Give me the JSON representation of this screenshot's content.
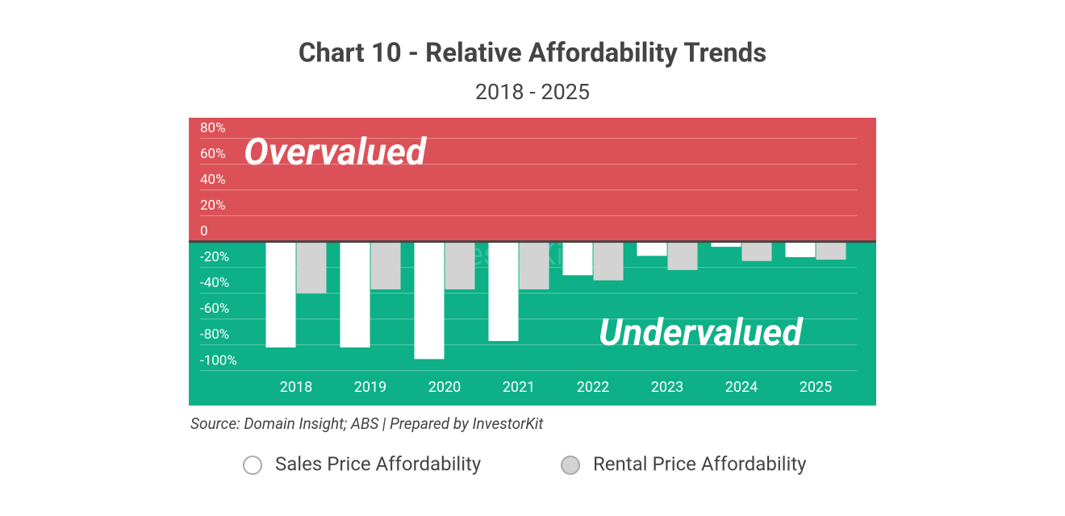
{
  "chart_data": {
    "type": "bar",
    "title": "Chart 10 - Relative Affordability Trends",
    "subtitle": "2018 - 2025",
    "source": "Source: Domain Insight; ABS | Prepared by InvestorKit",
    "watermark": "InvestorKit",
    "annotations": {
      "above": "Overvalued",
      "below": "Undervalued"
    },
    "zone_colors": {
      "above": "#dc5157",
      "below": "#0db087"
    },
    "categories": [
      "2018",
      "2019",
      "2020",
      "2021",
      "2022",
      "2023",
      "2024",
      "2025"
    ],
    "series": [
      {
        "name": "Sales Price Affordability",
        "color": "#ffffff",
        "values": [
          -82,
          -82,
          -91,
          -77,
          -26,
          -11,
          -4,
          -12
        ]
      },
      {
        "name": "Rental Price Affordability",
        "color": "#d3d3d3",
        "values": [
          -40,
          -37,
          -37,
          -37,
          -30,
          -22,
          -15,
          -14
        ]
      }
    ],
    "ylim": [
      -127,
      96
    ],
    "yticks": [
      {
        "value": -100,
        "label": "-100%"
      },
      {
        "value": -80,
        "label": "-80%"
      },
      {
        "value": -60,
        "label": "-60%"
      },
      {
        "value": -40,
        "label": "-40%"
      },
      {
        "value": -20,
        "label": "-20%"
      },
      0,
      {
        "value": 20,
        "label": "20%"
      },
      {
        "value": 40,
        "label": "40%"
      },
      {
        "value": 60,
        "label": "60%"
      },
      {
        "value": 80,
        "label": "80%"
      }
    ],
    "grid": true
  }
}
